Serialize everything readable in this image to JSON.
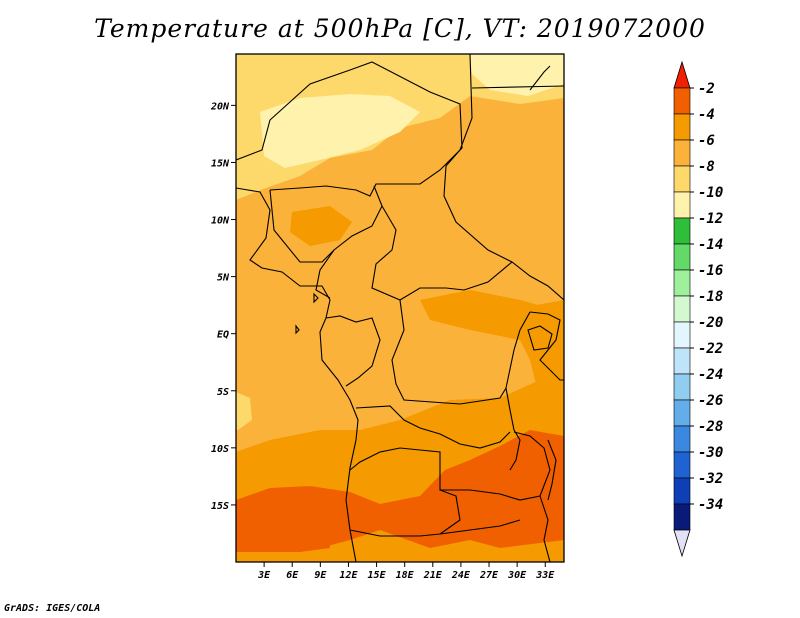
{
  "title": "Temperature at 500hPa [C], VT: 2019072000",
  "credit": "GrADS: IGES/COLA",
  "map": {
    "lon_range": [
      0,
      35
    ],
    "lat_range": [
      -20,
      24.5
    ],
    "lat_ticks": [
      {
        "value": 20,
        "label": "20N"
      },
      {
        "value": 15,
        "label": "15N"
      },
      {
        "value": 10,
        "label": "10N"
      },
      {
        "value": 5,
        "label": "5N"
      },
      {
        "value": 0,
        "label": "EQ"
      },
      {
        "value": -5,
        "label": "5S"
      },
      {
        "value": -10,
        "label": "10S"
      },
      {
        "value": -15,
        "label": "15S"
      }
    ],
    "lon_ticks": [
      {
        "value": 3,
        "label": "3E"
      },
      {
        "value": 6,
        "label": "6E"
      },
      {
        "value": 9,
        "label": "9E"
      },
      {
        "value": 12,
        "label": "12E"
      },
      {
        "value": 15,
        "label": "15E"
      },
      {
        "value": 18,
        "label": "18E"
      },
      {
        "value": 21,
        "label": "21E"
      },
      {
        "value": 24,
        "label": "24E"
      },
      {
        "value": 27,
        "label": "27E"
      },
      {
        "value": 30,
        "label": "30E"
      },
      {
        "value": 33,
        "label": "33E"
      }
    ],
    "fill_colors": {
      "warmest": "#f06000",
      "warm": "#f59a00",
      "mid": "#fbb23a",
      "cool": "#fdd86b",
      "coolest": "#fef2ac"
    }
  },
  "colorbar": {
    "bins": [
      {
        "label": "-2",
        "color": "#f06000"
      },
      {
        "label": "-4",
        "color": "#f59a00"
      },
      {
        "label": "-6",
        "color": "#fbb23a"
      },
      {
        "label": "-8",
        "color": "#fdd86b"
      },
      {
        "label": "-10",
        "color": "#fef2ac"
      },
      {
        "label": "-12",
        "color": "#2fbe3a"
      },
      {
        "label": "-14",
        "color": "#63d96a"
      },
      {
        "label": "-16",
        "color": "#9ef09d"
      },
      {
        "label": "-18",
        "color": "#d4f8d0"
      },
      {
        "label": "-20",
        "color": "#e3f6fd"
      },
      {
        "label": "-22",
        "color": "#bde4f8"
      },
      {
        "label": "-24",
        "color": "#91cdf1"
      },
      {
        "label": "-26",
        "color": "#63aeea"
      },
      {
        "label": "-28",
        "color": "#3b88e0"
      },
      {
        "label": "-30",
        "color": "#1f63d3"
      },
      {
        "label": "-32",
        "color": "#0f3fb6"
      },
      {
        "label": "-34",
        "color": "#0a1a78"
      }
    ],
    "top_triangle_color": "#f02000",
    "bottom_triangle_color": "#e3e1f6"
  }
}
